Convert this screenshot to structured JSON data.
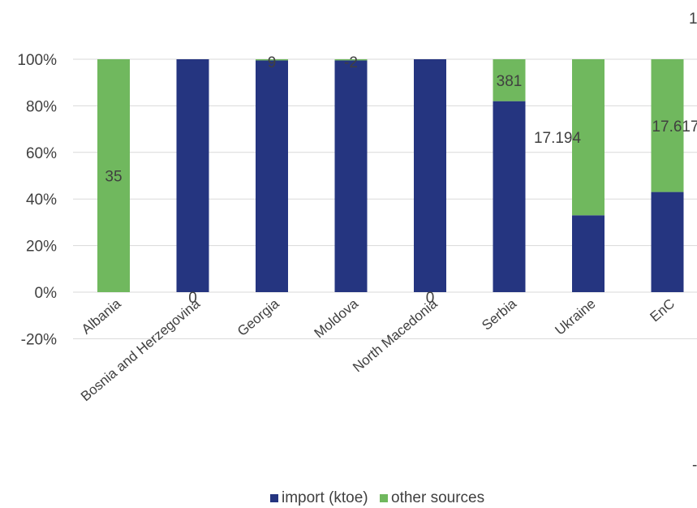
{
  "chart_data": {
    "type": "bar",
    "stacked": true,
    "percent": true,
    "categories": [
      "Albania",
      "Bosnia and Herzegovina",
      "Georgia",
      "Moldova",
      "North Macedonia",
      "Serbia",
      "Ukraine",
      "EnC"
    ],
    "series": [
      {
        "name": "import (ktoe)",
        "color": "#253580",
        "values": [
          0,
          100,
          99.5,
          99.5,
          100,
          82,
          33,
          43
        ]
      },
      {
        "name": "other sources",
        "color": "#70b85e",
        "values": [
          100,
          0,
          0.5,
          0.5,
          0,
          18,
          67,
          57
        ]
      }
    ],
    "data_labels": [
      "35",
      "0",
      "9",
      "-2",
      "0",
      "381",
      "17.194",
      "17.617"
    ],
    "yaxis": {
      "min": -20,
      "max": 100,
      "step": 20,
      "tick_labels": [
        "-20%",
        "0%",
        "20%",
        "40%",
        "60%",
        "80%",
        "100%"
      ]
    },
    "grid": true,
    "legend_position": "bottom",
    "title": "",
    "xlabel": "",
    "ylabel": "",
    "secondary_axis_marks": [
      "1",
      "-"
    ]
  }
}
